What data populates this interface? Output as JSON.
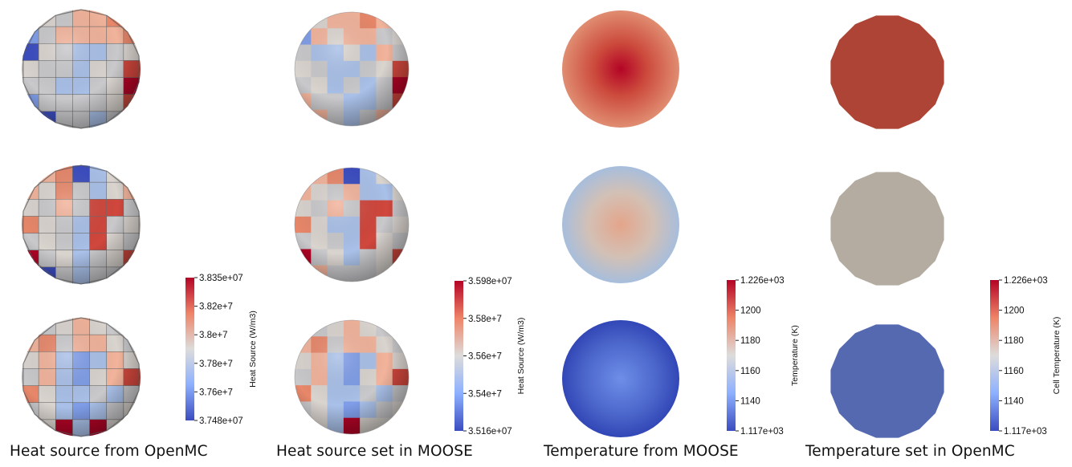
{
  "panels": [
    {
      "caption": "Heat source from OpenMC",
      "colorbar": {
        "title": "Heat Source (W/m3)",
        "ticks": [
          "3.835e+07",
          "3.82e+7",
          "3.8e+7",
          "3.78e+7",
          "3.76e+7",
          "3.748e+07"
        ]
      },
      "style": "faceted-sphere",
      "rows": 3
    },
    {
      "caption": "Heat source set in MOOSE",
      "colorbar": {
        "title": "Heat Source (W/m3)",
        "ticks": [
          "3.598e+07",
          "3.58e+7",
          "3.56e+7",
          "3.54e+7",
          "3.516e+07"
        ]
      },
      "style": "smooth-sphere",
      "rows": 3
    },
    {
      "caption": "Temperature from MOOSE",
      "colorbar": {
        "title": "Temperature (K)",
        "ticks": [
          "1.226e+03",
          "1200",
          "1180",
          "1160",
          "1140",
          "1.117e+03"
        ]
      },
      "style": "radial-disk",
      "rows": 3
    },
    {
      "caption": "Temperature set in OpenMC",
      "colorbar": {
        "title": "Cell Temperature (K)",
        "ticks": [
          "1.226e+03",
          "1200",
          "1180",
          "1160",
          "1140",
          "1.117e+03"
        ]
      },
      "style": "polygon-disk",
      "rows": 3
    }
  ],
  "colormap": "cool-to-warm",
  "colors": {
    "high": "#b40426",
    "mid": "#dddcdb",
    "low": "#3b4cc0",
    "uniform_top": "#ad4435",
    "uniform_middle": "#b4aca0",
    "uniform_bottom": "#5569b0"
  }
}
